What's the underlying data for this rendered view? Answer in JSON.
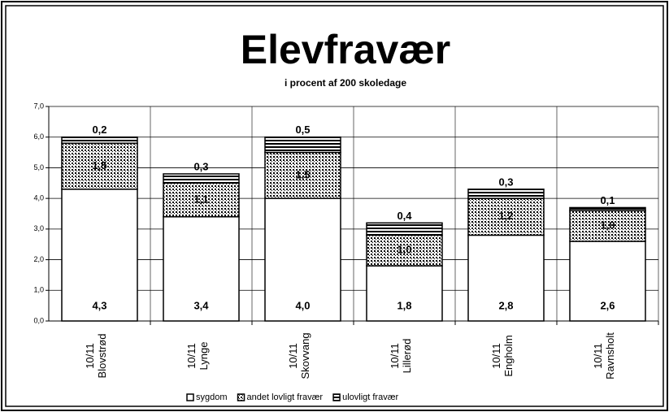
{
  "chart_data": {
    "type": "stacked_bar",
    "title": "Elevfravær",
    "subtitle": "i procent af 200 skoledage",
    "categories": [
      "10/11\nBlovstrød",
      "10/11\nLynge",
      "10/11\nSkovvang",
      "10/11\nLillerød",
      "10/11\nEngholm",
      "10/11\nRavnsholt"
    ],
    "series": [
      {
        "name": "sygdom",
        "color": "#ffffff",
        "pattern": "solid",
        "values": [
          4.3,
          3.4,
          4.0,
          1.8,
          2.8,
          2.6
        ],
        "value_labels": [
          "4,3",
          "3,4",
          "4,0",
          "1,8",
          "2,8",
          "2,6"
        ]
      },
      {
        "name": "andet lovligt fravær",
        "color": "#ffffff",
        "pattern": "dots",
        "values": [
          1.5,
          1.1,
          1.5,
          1.0,
          1.2,
          1.0
        ],
        "value_labels": [
          "1,5",
          "1,1",
          "1,5",
          "1,0",
          "1,2",
          "1,0"
        ]
      },
      {
        "name": "ulovligt fravær",
        "color": "#ffffff",
        "pattern": "stripes",
        "values": [
          0.2,
          0.3,
          0.5,
          0.4,
          0.3,
          0.1
        ],
        "value_labels": [
          "0,2",
          "0,3",
          "0,5",
          "0,4",
          "0,3",
          "0,1"
        ]
      }
    ],
    "ylim": [
      0,
      7
    ],
    "yticks": [
      {
        "value": 0,
        "label": "0,0"
      },
      {
        "value": 1,
        "label": "1,0"
      },
      {
        "value": 2,
        "label": "2,0"
      },
      {
        "value": 3,
        "label": "3,0"
      },
      {
        "value": 4,
        "label": "4,0"
      },
      {
        "value": 5,
        "label": "5,0"
      },
      {
        "value": 6,
        "label": "6,0"
      },
      {
        "value": 7,
        "label": "7,0"
      }
    ],
    "grid": true,
    "legend": "bottom"
  }
}
